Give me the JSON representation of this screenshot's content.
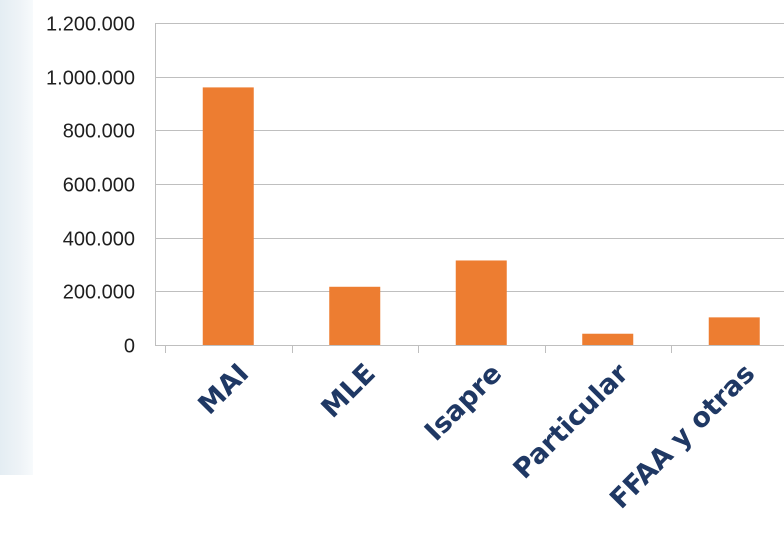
{
  "chart_data": {
    "type": "bar",
    "categories": [
      "MAI",
      "MLE",
      "Isapre",
      "Particular",
      "FFAA y otras"
    ],
    "values": [
      960000,
      217000,
      315000,
      42000,
      103000
    ],
    "ylim": [
      0,
      1200000
    ],
    "yticks": [
      0,
      200000,
      400000,
      600000,
      800000,
      1000000,
      1200000
    ],
    "ytick_labels": [
      "0",
      "200.000",
      "400.000",
      "600.000",
      "800.000",
      "1.000.000",
      "1.200.000"
    ],
    "grid": true,
    "legend": "none",
    "bar_color": "#ED7D31",
    "grid_color": "#bfbfbf",
    "label_color": "#1F3864"
  }
}
